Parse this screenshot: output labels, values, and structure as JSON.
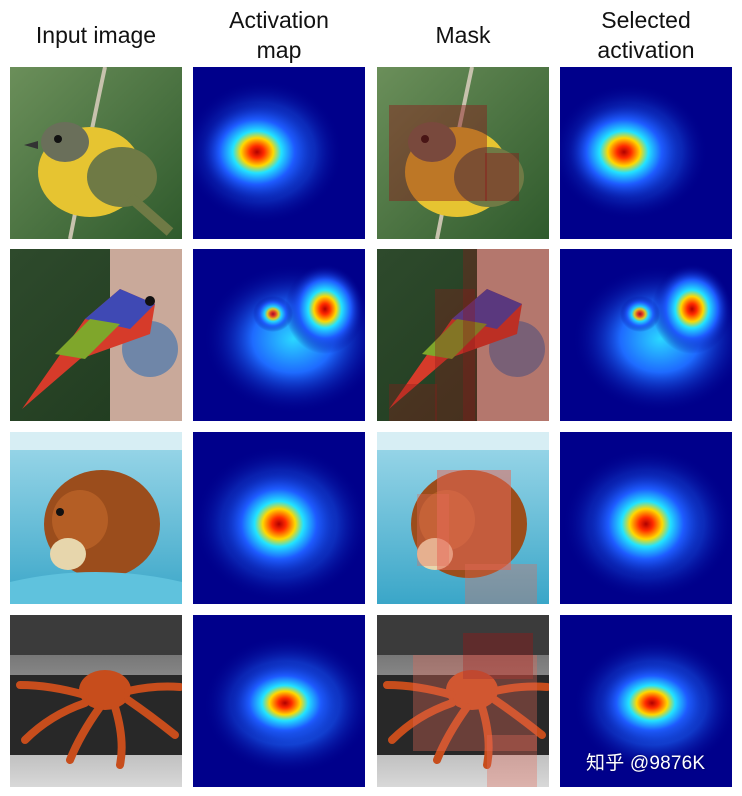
{
  "figure": {
    "column_headers": [
      "Input image",
      "Activation\nmap",
      "Mask",
      "Selected\nactivation"
    ],
    "rows": [
      {
        "subject": "yellow-breasted bird on branch"
      },
      {
        "subject": "painted bunting at feeder"
      },
      {
        "subject": "golden retriever swimming with ball"
      },
      {
        "subject": "king crab on tray"
      }
    ],
    "colormap": {
      "low": "#00008b",
      "mid_low": "#1e5bff",
      "mid": "#22e3ff",
      "mid_high": "#ffd800",
      "high": "#d00000"
    },
    "mask_color": "#8b1a1a"
  },
  "watermark": {
    "text": "知乎 @9876K"
  }
}
